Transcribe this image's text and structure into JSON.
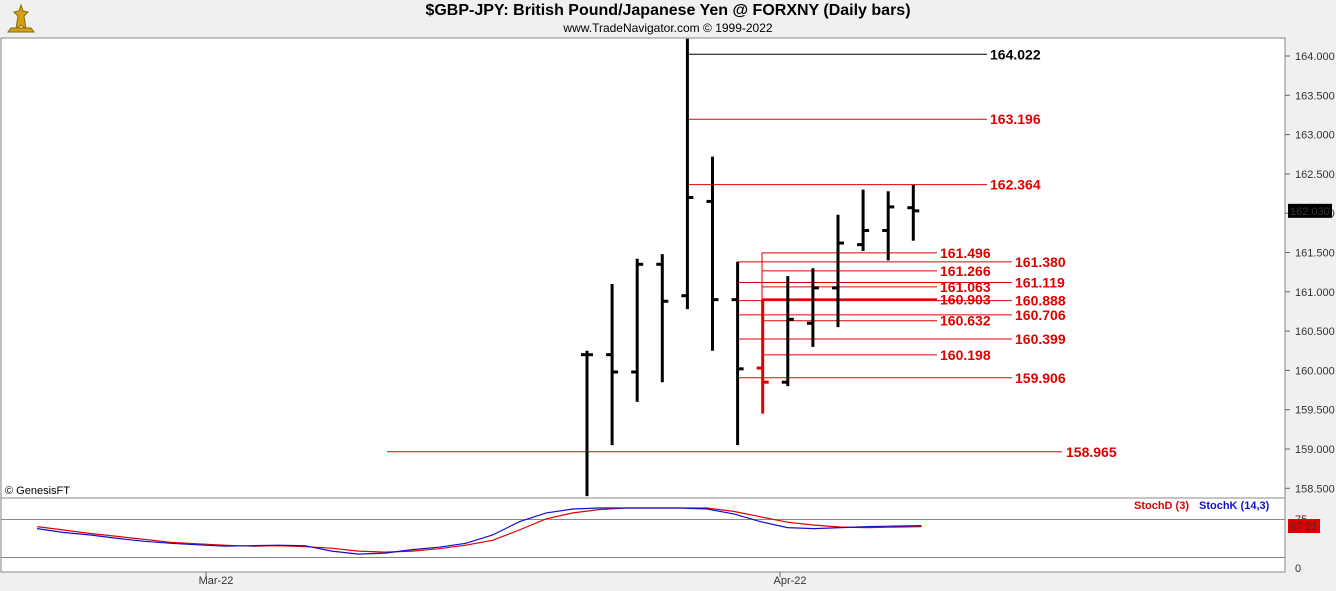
{
  "header": {
    "title": "$GBP-JPY:  British Pound/Japanese Yen @ FORXNY  (Daily bars)",
    "subtitle": "www.TradeNavigator.com © 1999-2022"
  },
  "copyright": "© GenesisFT",
  "colors": {
    "bars": "#000000",
    "red": "#e00000",
    "blue": "#1010d0",
    "bg": "#ffffff"
  },
  "chart_data": {
    "type": "ohlc",
    "price_axis": {
      "ticks": [
        "164.000",
        "163.500",
        "163.000",
        "162.500",
        "162.000",
        "161.500",
        "161.000",
        "160.500",
        "160.000",
        "159.500",
        "159.000",
        "158.500"
      ],
      "current": "162.030"
    },
    "date_axis": [
      "Mar-22",
      "Apr-22"
    ],
    "bars": [
      {
        "o": 160.2,
        "h": 160.25,
        "l": 158.4,
        "c": 160.2
      },
      {
        "o": 160.2,
        "h": 161.1,
        "l": 159.05,
        "c": 159.98
      },
      {
        "o": 159.98,
        "h": 161.42,
        "l": 159.6,
        "c": 161.35
      },
      {
        "o": 161.35,
        "h": 161.48,
        "l": 159.85,
        "c": 160.88
      },
      {
        "o": 160.95,
        "h": 164.22,
        "l": 160.78,
        "c": 162.2
      },
      {
        "o": 162.15,
        "h": 162.72,
        "l": 160.25,
        "c": 160.9
      },
      {
        "o": 160.9,
        "h": 161.38,
        "l": 159.05,
        "c": 160.02
      },
      {
        "o": 160.03,
        "h": 160.9,
        "l": 159.45,
        "c": 159.85
      },
      {
        "o": 159.85,
        "h": 161.2,
        "l": 159.8,
        "c": 160.65
      },
      {
        "o": 160.6,
        "h": 161.3,
        "l": 160.3,
        "c": 161.05
      },
      {
        "o": 161.05,
        "h": 161.98,
        "l": 160.55,
        "c": 161.62
      },
      {
        "o": 161.6,
        "h": 162.3,
        "l": 161.52,
        "c": 161.78
      },
      {
        "o": 161.78,
        "h": 162.28,
        "l": 161.4,
        "c": 162.08
      },
      {
        "o": 162.07,
        "h": 162.36,
        "l": 161.65,
        "c": 162.03
      }
    ],
    "red_bar_index": 7,
    "levels": [
      {
        "label": "164.022",
        "value": 164.022,
        "color": "black",
        "group": "a"
      },
      {
        "label": "163.196",
        "value": 163.196,
        "color": "red",
        "group": "a"
      },
      {
        "label": "162.364",
        "value": 162.364,
        "color": "red",
        "group": "a"
      },
      {
        "label": "158.965",
        "value": 158.965,
        "color": "red",
        "group": "d"
      },
      {
        "label": "161.380",
        "value": 161.38,
        "color": "red",
        "group": "b"
      },
      {
        "label": "161.119",
        "value": 161.119,
        "color": "red",
        "group": "b"
      },
      {
        "label": "160.888",
        "value": 160.888,
        "color": "red",
        "group": "b"
      },
      {
        "label": "160.706",
        "value": 160.706,
        "color": "red",
        "group": "b"
      },
      {
        "label": "160.399",
        "value": 160.399,
        "color": "red",
        "group": "b"
      },
      {
        "label": "159.906",
        "value": 159.906,
        "color": "red",
        "group": "b"
      },
      {
        "label": "161.496",
        "value": 161.496,
        "color": "red",
        "group": "c"
      },
      {
        "label": "161.266",
        "value": 161.266,
        "color": "red",
        "group": "c"
      },
      {
        "label": "161.063",
        "value": 161.063,
        "color": "red",
        "group": "c"
      },
      {
        "label": "160.903",
        "value": 160.903,
        "color": "red",
        "group": "c"
      },
      {
        "label": "160.632",
        "value": 160.632,
        "color": "red",
        "group": "c"
      },
      {
        "label": "160.198",
        "value": 160.198,
        "color": "red",
        "group": "c"
      }
    ],
    "stoch": {
      "legend_d": "StochD (3)",
      "legend_k": "StochK (14,3)",
      "value": "67.21",
      "axis_ticks": [
        "75",
        "0"
      ],
      "k": [
        58,
        50,
        45,
        38,
        32,
        28,
        25,
        22,
        23,
        24,
        23,
        12,
        6,
        8,
        15,
        20,
        28,
        45,
        72,
        90,
        98,
        100,
        100,
        100,
        100,
        98,
        88,
        72,
        60,
        58,
        60,
        62,
        63,
        64
      ],
      "d": [
        62,
        55,
        48,
        42,
        36,
        30,
        27,
        24,
        22,
        23,
        21,
        18,
        12,
        10,
        12,
        17,
        24,
        34,
        55,
        78,
        90,
        97,
        100,
        100,
        100,
        100,
        93,
        82,
        71,
        65,
        61,
        60,
        61,
        62
      ]
    }
  }
}
